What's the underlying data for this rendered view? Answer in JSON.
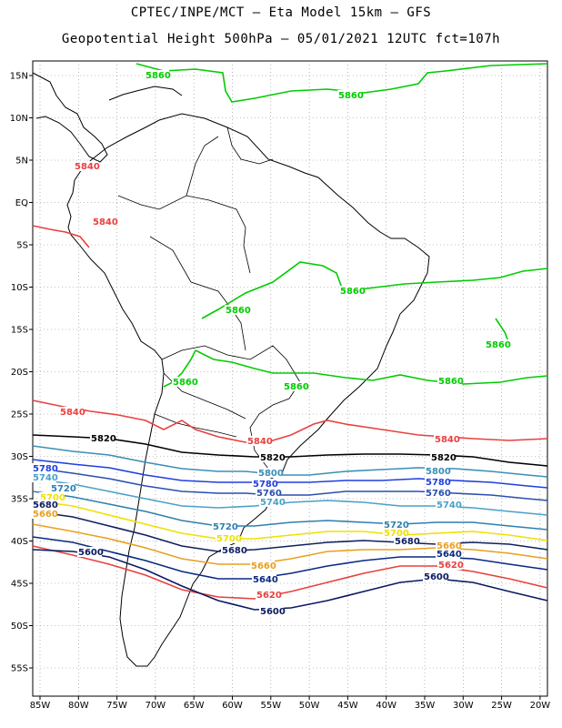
{
  "title_line1": "CPTEC/INPE/MCT –  Eta Model 15km – GFS",
  "title_line2": "Geopotential Height 500hPa – 05/01/2021 12UTC fct=107h",
  "lat_labels": [
    "15N",
    "10N",
    "5N",
    "EQ",
    "5S",
    "10S",
    "15S",
    "20S",
    "25S",
    "30S",
    "35S",
    "40S",
    "45S",
    "50S",
    "55S"
  ],
  "lon_labels": [
    "85W",
    "80W",
    "75W",
    "70W",
    "65W",
    "60W",
    "55W",
    "50W",
    "45W",
    "40W",
    "35W",
    "30W",
    "25W",
    "20W"
  ],
  "contour_levels": [
    {
      "level": "5860",
      "color": "#00cc00"
    },
    {
      "level": "5840",
      "color": "#e84040"
    },
    {
      "level": "5820",
      "color": "#000000"
    },
    {
      "level": "5800",
      "color": "#3a8fb7"
    },
    {
      "level": "5780",
      "color": "#1f3fe0"
    },
    {
      "level": "5760",
      "color": "#2a4fb0"
    },
    {
      "level": "5740",
      "color": "#4aa0c8"
    },
    {
      "level": "5720",
      "color": "#2f7fb0"
    },
    {
      "level": "5700",
      "color": "#f0e000"
    },
    {
      "level": "5680",
      "color": "#102060"
    },
    {
      "level": "5660",
      "color": "#e8a020"
    },
    {
      "level": "5640",
      "color": "#0a2a80"
    },
    {
      "level": "5620",
      "color": "#e84040"
    },
    {
      "level": "5600",
      "color": "#0a1a60"
    }
  ]
}
